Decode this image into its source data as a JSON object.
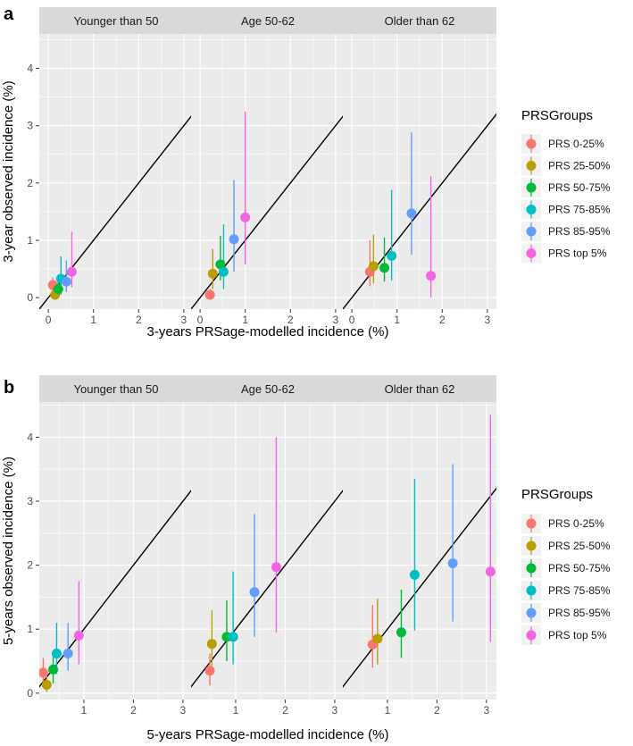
{
  "chart_data": [
    {
      "type": "scatter",
      "panel_label": "a",
      "xlabel": "3-years PRSage-modelled incidence (%)",
      "ylabel": "3-year observed incidence (%)",
      "xlim": [
        -0.2,
        3.2
      ],
      "ylim": [
        -0.2,
        4.6
      ],
      "xticks": [
        "0",
        "1",
        "2",
        "3"
      ],
      "yticks": [
        "0",
        "1",
        "2",
        "3",
        "4"
      ],
      "identity_line": true,
      "legend_title": "PRSGroups",
      "facets": [
        {
          "label": "Younger than 50",
          "series": [
            {
              "name": "PRS 0-25%",
              "x": 0.1,
              "y": 0.22,
              "ymin": 0.08,
              "ymax": 0.35
            },
            {
              "name": "PRS 25-50%",
              "x": 0.15,
              "y": 0.05,
              "ymin": 0.0,
              "ymax": 0.2
            },
            {
              "name": "PRS 50-75%",
              "x": 0.22,
              "y": 0.15,
              "ymin": 0.02,
              "ymax": 0.35
            },
            {
              "name": "PRS 75-85%",
              "x": 0.28,
              "y": 0.33,
              "ymin": 0.05,
              "ymax": 0.72
            },
            {
              "name": "PRS 85-95%",
              "x": 0.4,
              "y": 0.28,
              "ymin": 0.1,
              "ymax": 0.65
            },
            {
              "name": "PRS top 5%",
              "x": 0.52,
              "y": 0.45,
              "ymin": 0.18,
              "ymax": 1.15
            }
          ]
        },
        {
          "label": "Age 50-62",
          "series": [
            {
              "name": "PRS 0-25%",
              "x": 0.22,
              "y": 0.05,
              "ymin": 0.0,
              "ymax": 0.15
            },
            {
              "name": "PRS 25-50%",
              "x": 0.28,
              "y": 0.42,
              "ymin": 0.15,
              "ymax": 0.85
            },
            {
              "name": "PRS 50-75%",
              "x": 0.45,
              "y": 0.58,
              "ymin": 0.3,
              "ymax": 1.08
            },
            {
              "name": "PRS 75-85%",
              "x": 0.52,
              "y": 0.45,
              "ymin": 0.15,
              "ymax": 1.28
            },
            {
              "name": "PRS 85-95%",
              "x": 0.75,
              "y": 1.02,
              "ymin": 0.45,
              "ymax": 2.05
            },
            {
              "name": "PRS top 5%",
              "x": 1.0,
              "y": 1.4,
              "ymin": 0.58,
              "ymax": 3.25
            }
          ]
        },
        {
          "label": "Older than 62",
          "series": [
            {
              "name": "PRS 0-25%",
              "x": 0.4,
              "y": 0.45,
              "ymin": 0.2,
              "ymax": 1.0
            },
            {
              "name": "PRS 25-50%",
              "x": 0.48,
              "y": 0.55,
              "ymin": 0.25,
              "ymax": 1.1
            },
            {
              "name": "PRS 50-75%",
              "x": 0.72,
              "y": 0.52,
              "ymin": 0.28,
              "ymax": 1.05
            },
            {
              "name": "PRS 75-85%",
              "x": 0.88,
              "y": 0.73,
              "ymin": 0.3,
              "ymax": 1.88
            },
            {
              "name": "PRS 85-95%",
              "x": 1.32,
              "y": 1.47,
              "ymin": 0.75,
              "ymax": 2.88
            },
            {
              "name": "PRS top 5%",
              "x": 1.75,
              "y": 0.38,
              "ymin": 0.0,
              "ymax": 2.12
            }
          ]
        }
      ]
    },
    {
      "type": "scatter",
      "panel_label": "b",
      "xlabel": "5-years PRSage-modelled incidence (%)",
      "ylabel": "5-years observed incidence (%)",
      "xlim": [
        0.1,
        3.2
      ],
      "ylim": [
        -0.1,
        4.55
      ],
      "xticks": [
        "1",
        "2",
        "3"
      ],
      "yticks": [
        "0",
        "1",
        "2",
        "3",
        "4"
      ],
      "identity_line": true,
      "legend_title": "PRSGroups",
      "facets": [
        {
          "label": "Younger than 50",
          "series": [
            {
              "name": "PRS 0-25%",
              "x": 0.18,
              "y": 0.32,
              "ymin": 0.12,
              "ymax": 0.55
            },
            {
              "name": "PRS 25-50%",
              "x": 0.25,
              "y": 0.13,
              "ymin": 0.02,
              "ymax": 0.3
            },
            {
              "name": "PRS 50-75%",
              "x": 0.38,
              "y": 0.37,
              "ymin": 0.15,
              "ymax": 0.65
            },
            {
              "name": "PRS 75-85%",
              "x": 0.45,
              "y": 0.62,
              "ymin": 0.3,
              "ymax": 1.1
            },
            {
              "name": "PRS 85-95%",
              "x": 0.68,
              "y": 0.62,
              "ymin": 0.35,
              "ymax": 1.1
            },
            {
              "name": "PRS top 5%",
              "x": 0.9,
              "y": 0.9,
              "ymin": 0.45,
              "ymax": 1.75
            }
          ]
        },
        {
          "label": "Age 50-62",
          "series": [
            {
              "name": "PRS 0-25%",
              "x": 0.48,
              "y": 0.35,
              "ymin": 0.12,
              "ymax": 0.62
            },
            {
              "name": "PRS 25-50%",
              "x": 0.52,
              "y": 0.77,
              "ymin": 0.42,
              "ymax": 1.3
            },
            {
              "name": "PRS 50-75%",
              "x": 0.82,
              "y": 0.88,
              "ymin": 0.5,
              "ymax": 1.45
            },
            {
              "name": "PRS 75-85%",
              "x": 0.95,
              "y": 0.88,
              "ymin": 0.45,
              "ymax": 1.9
            },
            {
              "name": "PRS 85-95%",
              "x": 1.38,
              "y": 1.58,
              "ymin": 0.88,
              "ymax": 2.8
            },
            {
              "name": "PRS top 5%",
              "x": 1.82,
              "y": 1.97,
              "ymin": 0.95,
              "ymax": 4.0
            }
          ]
        },
        {
          "label": "Older than 62",
          "series": [
            {
              "name": "PRS 0-25%",
              "x": 0.7,
              "y": 0.76,
              "ymin": 0.4,
              "ymax": 1.38
            },
            {
              "name": "PRS 25-50%",
              "x": 0.8,
              "y": 0.85,
              "ymin": 0.45,
              "ymax": 1.48
            },
            {
              "name": "PRS 50-75%",
              "x": 1.28,
              "y": 0.95,
              "ymin": 0.55,
              "ymax": 1.62
            },
            {
              "name": "PRS 75-85%",
              "x": 1.55,
              "y": 1.85,
              "ymin": 0.98,
              "ymax": 3.35
            },
            {
              "name": "PRS 85-95%",
              "x": 2.32,
              "y": 2.03,
              "ymin": 1.12,
              "ymax": 3.58
            },
            {
              "name": "PRS top 5%",
              "x": 3.08,
              "y": 1.9,
              "ymin": 0.8,
              "ymax": 4.35
            }
          ]
        }
      ]
    }
  ],
  "legend": {
    "title": "PRSGroups",
    "items": [
      {
        "name": "PRS 0-25%",
        "color": "#F8766D"
      },
      {
        "name": "PRS 25-50%",
        "color": "#B79F00"
      },
      {
        "name": "PRS 50-75%",
        "color": "#00BA38"
      },
      {
        "name": "PRS 75-85%",
        "color": "#00BFC4"
      },
      {
        "name": "PRS 85-95%",
        "color": "#619CFF"
      },
      {
        "name": "PRS top 5%",
        "color": "#F564E3"
      }
    ]
  },
  "colors": {
    "panel_bg": "#EBEBEB",
    "strip_bg": "#D9D9D9",
    "grid": "#FFFFFF",
    "identity_line": "#000000"
  }
}
